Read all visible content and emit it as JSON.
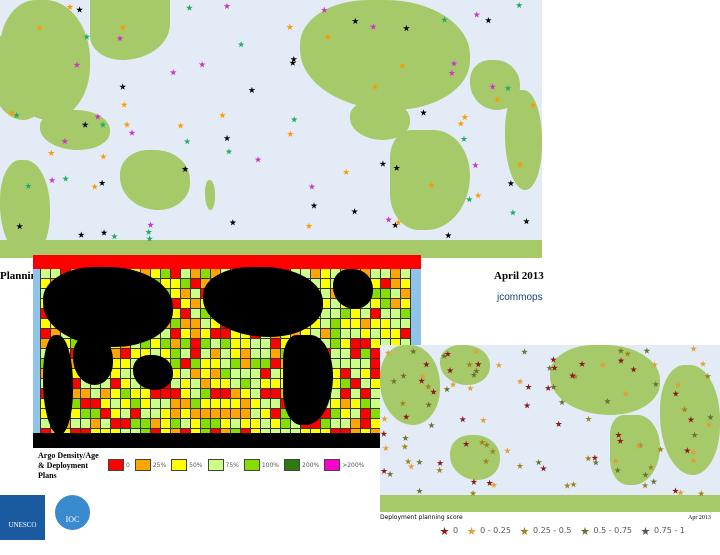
{
  "slide": {
    "title_fragment": "Plannin",
    "date_top": "April 2013",
    "logo_text": "jcommops",
    "date_bottom": "Apr 2013"
  },
  "map2_legend": {
    "title": "Argo Density/Age & Deployment Plans",
    "items": [
      {
        "color": "#ff0000",
        "label": "0"
      },
      {
        "color": "#ffa500",
        "label": "25%"
      },
      {
        "color": "#ffff00",
        "label": "50%"
      },
      {
        "color": "#ccff88",
        "label": "75%"
      },
      {
        "color": "#88dd00",
        "label": "100%"
      },
      {
        "color": "#2d7a10",
        "label": "200%"
      },
      {
        "color": "#ff00cc",
        "label": ">200%"
      }
    ]
  },
  "map3_legend": {
    "title": "Deployment planning score",
    "items": [
      {
        "color": "#8b1a1a",
        "label": "0"
      },
      {
        "color": "#e0a030",
        "label": "0 - 0.25"
      },
      {
        "color": "#a08020",
        "label": "0.25 - 0.5"
      },
      {
        "color": "#707030",
        "label": "0.5 - 0.75"
      },
      {
        "color": "#555555",
        "label": "0.75 - 1"
      }
    ]
  },
  "logos": {
    "unesco": "UNESCO",
    "ioc": "IOC"
  }
}
